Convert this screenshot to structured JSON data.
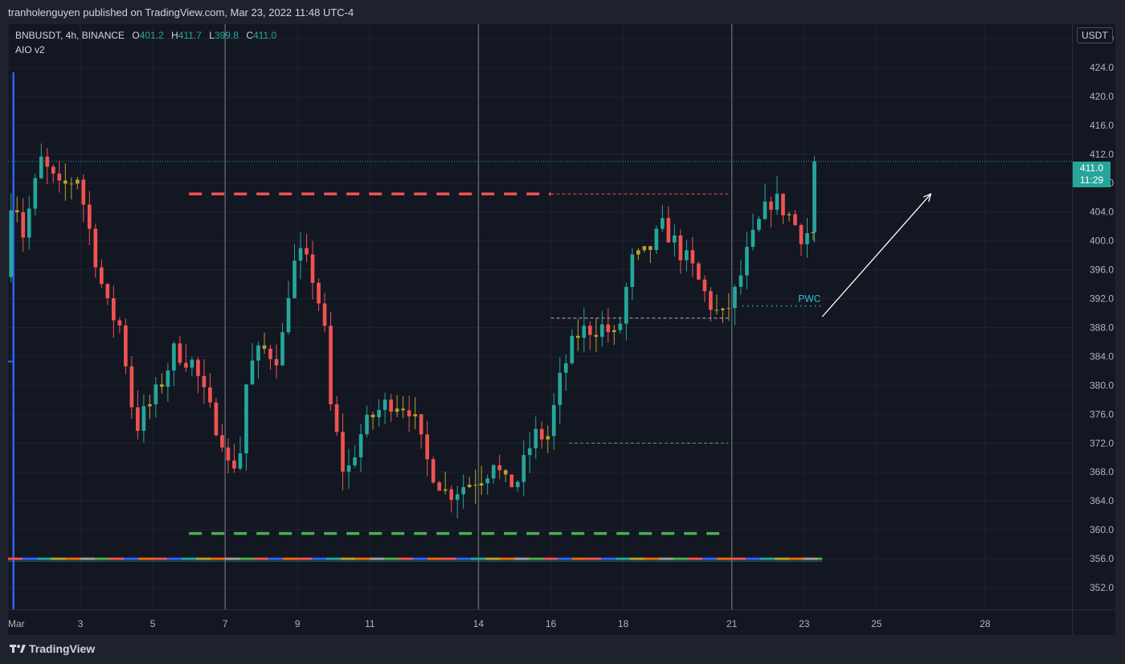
{
  "header": {
    "publisher_text": "tranholenguyen published on TradingView.com, Mar 23, 2022 11:48 UTC-4"
  },
  "legend": {
    "symbol": "BNBUSDT, 4h, BINANCE",
    "open_label": "O",
    "open": "401.2",
    "high_label": "H",
    "high": "411.7",
    "low_label": "L",
    "low": "399.8",
    "close_label": "C",
    "close": "411.0",
    "indicator": "AIO v2"
  },
  "price_tag": {
    "price": "411.0",
    "countdown": "11:29"
  },
  "currency_button": "USDT",
  "footer": {
    "brand": "TradingView"
  },
  "colors": {
    "up": "#26a69a",
    "down": "#ef5350",
    "neutral_up": "#b7a32e",
    "background": "#131722",
    "grid": "#1f2330",
    "resistance": "#ef5350",
    "support": "#4caf50",
    "pwc": "#26c6da"
  },
  "chart_data": {
    "type": "candlestick",
    "symbol": "BNBUSDT",
    "timeframe": "4h",
    "ylim": [
      349,
      430
    ],
    "y_ticks": [
      352.0,
      356.0,
      360.0,
      364.0,
      368.0,
      372.0,
      376.0,
      380.0,
      384.0,
      388.0,
      392.0,
      396.0,
      400.0,
      404.0,
      408.0,
      412.0,
      416.0,
      420.0,
      424.0,
      428.0
    ],
    "x_ticks": [
      "Mar",
      "3",
      "5",
      "7",
      "9",
      "11",
      "14",
      "16",
      "18",
      "21",
      "23",
      "25",
      "28"
    ],
    "x_tick_days": [
      1,
      3,
      5,
      7,
      9,
      11,
      14,
      16,
      18,
      21,
      23,
      25,
      28
    ],
    "xlim_days": [
      1,
      30.4
    ],
    "week_separators_days": [
      7,
      14,
      21
    ],
    "candles_per_day": 6,
    "anchors": [
      {
        "day": 1.0,
        "price": 395
      },
      {
        "day": 1.2,
        "price": 408
      },
      {
        "day": 1.5,
        "price": 401
      },
      {
        "day": 2.0,
        "price": 411
      },
      {
        "day": 2.5,
        "price": 407
      },
      {
        "day": 3.0,
        "price": 409
      },
      {
        "day": 3.4,
        "price": 400
      },
      {
        "day": 3.8,
        "price": 391
      },
      {
        "day": 4.2,
        "price": 388
      },
      {
        "day": 4.6,
        "price": 374
      },
      {
        "day": 5.2,
        "price": 379
      },
      {
        "day": 5.7,
        "price": 385
      },
      {
        "day": 6.2,
        "price": 383
      },
      {
        "day": 6.6,
        "price": 377
      },
      {
        "day": 7.0,
        "price": 373
      },
      {
        "day": 7.2,
        "price": 368
      },
      {
        "day": 7.5,
        "price": 371
      },
      {
        "day": 7.7,
        "price": 382
      },
      {
        "day": 8.1,
        "price": 385
      },
      {
        "day": 8.6,
        "price": 384
      },
      {
        "day": 8.9,
        "price": 396
      },
      {
        "day": 9.2,
        "price": 398
      },
      {
        "day": 9.5,
        "price": 395
      },
      {
        "day": 9.8,
        "price": 389
      },
      {
        "day": 10.0,
        "price": 377
      },
      {
        "day": 10.4,
        "price": 367
      },
      {
        "day": 10.8,
        "price": 373
      },
      {
        "day": 11.2,
        "price": 376
      },
      {
        "day": 11.7,
        "price": 378
      },
      {
        "day": 12.2,
        "price": 377
      },
      {
        "day": 12.6,
        "price": 370
      },
      {
        "day": 13.2,
        "price": 365
      },
      {
        "day": 13.6,
        "price": 366
      },
      {
        "day": 14.0,
        "price": 367
      },
      {
        "day": 14.3,
        "price": 368
      },
      {
        "day": 14.5,
        "price": 370
      },
      {
        "day": 14.8,
        "price": 366
      },
      {
        "day": 15.2,
        "price": 367
      },
      {
        "day": 15.6,
        "price": 373
      },
      {
        "day": 16.0,
        "price": 373
      },
      {
        "day": 16.4,
        "price": 382
      },
      {
        "day": 16.8,
        "price": 387
      },
      {
        "day": 17.2,
        "price": 388
      },
      {
        "day": 17.6,
        "price": 388
      },
      {
        "day": 17.9,
        "price": 386
      },
      {
        "day": 18.3,
        "price": 397
      },
      {
        "day": 18.7,
        "price": 398
      },
      {
        "day": 19.2,
        "price": 402
      },
      {
        "day": 19.6,
        "price": 399
      },
      {
        "day": 20.0,
        "price": 396
      },
      {
        "day": 20.4,
        "price": 392
      },
      {
        "day": 20.8,
        "price": 389
      },
      {
        "day": 21.2,
        "price": 393
      },
      {
        "day": 21.5,
        "price": 398
      },
      {
        "day": 21.8,
        "price": 402
      },
      {
        "day": 22.2,
        "price": 406
      },
      {
        "day": 22.6,
        "price": 404
      },
      {
        "day": 23.0,
        "price": 401
      },
      {
        "day": 23.2,
        "price": 401.2
      }
    ],
    "last_candle": {
      "open": 401.2,
      "high": 411.7,
      "low": 399.8,
      "close": 411.0
    },
    "last_price": 411.0,
    "drawings": {
      "resistance_line": {
        "price": 406.5,
        "start_day": 6.0,
        "end_day": 20.9
      },
      "support_line": {
        "price": 359.5,
        "start_day": 6.0,
        "end_day": 20.9
      },
      "upper_dotted_line": {
        "price": 389.3,
        "start_day": 16.0,
        "end_day": 20.9
      },
      "lower_dotted_line": {
        "price": 372.0,
        "start_day": 16.5,
        "end_day": 20.9
      },
      "pwc_line": {
        "price": 391.0,
        "start_day": 21.3,
        "end_day": 23.5,
        "label": "PWC"
      },
      "last_price_line": {
        "price": 411.0
      },
      "arrow": {
        "from": {
          "day": 23.5,
          "price": 389.5
        },
        "to": {
          "day": 26.5,
          "price": 406.5
        }
      },
      "indicator_band": {
        "price": 356.0,
        "start_day": 1.0,
        "end_day": 23.5
      }
    }
  }
}
